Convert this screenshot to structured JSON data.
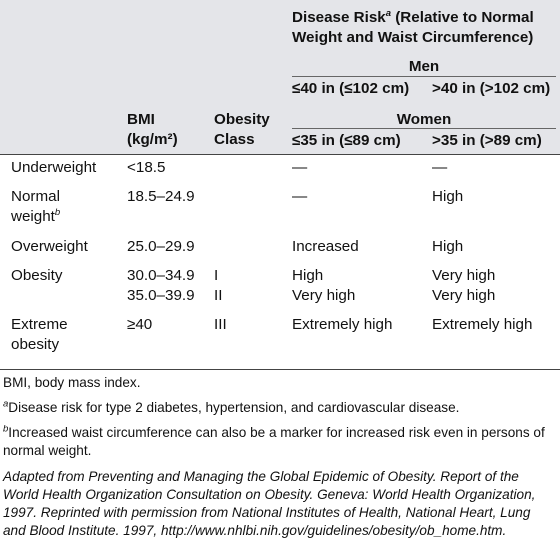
{
  "header": {
    "risk_title_main": "Disease Risk",
    "risk_title_note": "a",
    "risk_title_rest": " (Relative to Normal Weight and Waist Circumference)",
    "men_label": "Men",
    "men_col1": "≤40 in (≤102 cm)",
    "men_col2": ">40 in (>102 cm)",
    "women_label": "Women",
    "women_col1": "≤35 in (≤89 cm)",
    "women_col2": ">35 in (>89 cm)",
    "bmi_line1": "BMI",
    "bmi_line2": "(kg/m²)",
    "class_line1": "Obesity",
    "class_line2": "Class"
  },
  "rows": {
    "underweight": {
      "category": "Underweight",
      "bmi": "<18.5",
      "class": "",
      "risk_low": "—",
      "risk_high": "—"
    },
    "normal": {
      "category_line1": "Normal",
      "category_line2": "weight",
      "category_note": "b",
      "bmi": "18.5–24.9",
      "class": "",
      "risk_low": "—",
      "risk_high": "High"
    },
    "overweight": {
      "category": "Overweight",
      "bmi": "25.0–29.9",
      "class": "",
      "risk_low": "Increased",
      "risk_high": "High"
    },
    "obesity": {
      "category": "Obesity",
      "bmi_1": "30.0–34.9",
      "class_1": "I",
      "risk_low_1": "High",
      "risk_high_1": "Very high",
      "bmi_2": "35.0–39.9",
      "class_2": "II",
      "risk_low_2": "Very high",
      "risk_high_2": "Very high"
    },
    "extreme": {
      "category_line1": "Extreme",
      "category_line2": "obesity",
      "bmi": "≥40",
      "class": "III",
      "risk_low": "Extremely high",
      "risk_high": "Extremely high"
    }
  },
  "footnotes": {
    "abbrev": "BMI, body mass index.",
    "a_mark": "a",
    "a_text": "Disease risk for type 2 diabetes, hypertension, and cardiovascular disease.",
    "b_mark": "b",
    "b_text": "Increased waist circumference can also be a marker for increased risk even in persons of normal weight.",
    "source": "Adapted from Preventing and Managing the Global Epidemic of Obesity. Report of the World Health Organization Consultation on Obesity. Geneva: World Health Organization, 1997. Reprinted with permission from National Institutes of Health, National Heart, Lung and Blood Institute. 1997, http://www.nhlbi.nih.gov/guidelines/obesity/ob_home.htm."
  }
}
